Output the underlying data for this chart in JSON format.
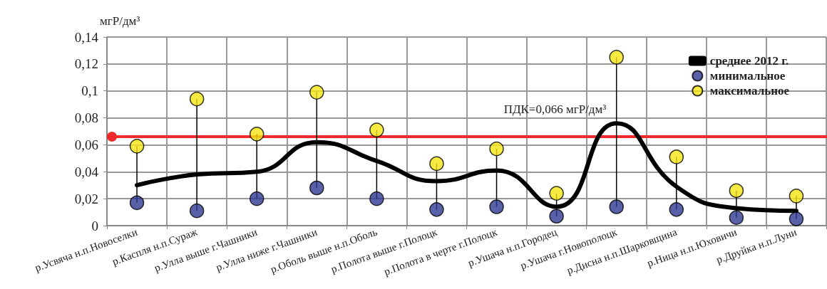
{
  "chart_data": {
    "type": "scatter",
    "ylabel": "мгР/дм³",
    "categories": [
      "р.Усвяча н.п.Новоселки",
      "р.Каспля н.п.Сураж",
      "р.Улла выше г.Чашники",
      "р.Улла ниже г.Чашники",
      "р.Оболь выше н.п.Оболь",
      "р.Полота выше г.Полоцк",
      "р.Полота в черте г.Полоцк",
      "р.Ушача н.п.Городец",
      "р.Ушача г.Новополоцк",
      "р.Дисна н.п.Шарковщина",
      "р.Ница н.п.Юховичи",
      "р.Друйка н.п.Луни"
    ],
    "series": [
      {
        "name": "среднее 2012 г.",
        "type": "line",
        "marker": "none",
        "color": "#000000",
        "values": [
          0.03,
          0.038,
          0.04,
          0.062,
          0.048,
          0.033,
          0.041,
          0.014,
          0.076,
          0.029,
          0.013,
          0.011
        ]
      },
      {
        "name": "минимальное",
        "color": "#2e3a92",
        "values": [
          0.017,
          0.011,
          0.02,
          0.028,
          0.02,
          0.012,
          0.014,
          0.007,
          0.014,
          0.012,
          0.006,
          0.005
        ]
      },
      {
        "name": "максимальное",
        "color": "#f5e614",
        "values": [
          0.059,
          0.094,
          0.068,
          0.099,
          0.071,
          0.046,
          0.057,
          0.024,
          0.125,
          0.051,
          0.026,
          0.022
        ]
      }
    ],
    "ylim": [
      0,
      0.14
    ],
    "yticks": [
      0,
      {
        "value": 0.02,
        "label": "0,02"
      },
      {
        "value": 0.04,
        "label": "0,04"
      },
      {
        "value": 0.06,
        "label": "0,06"
      },
      {
        "value": 0.08,
        "label": "0,08"
      },
      {
        "value": 0.1,
        "label": "0,1"
      },
      {
        "value": 0.12,
        "label": "0,12"
      },
      {
        "value": 0.14,
        "label": "0,14"
      }
    ],
    "ref_lines": [
      {
        "axis": "y",
        "value": 0.066,
        "label": "ПДК=0,066 мгР/дм³",
        "color": "#ee2a2a"
      }
    ],
    "grid": true,
    "legend": "top right",
    "marker": "circle",
    "line_style": "solid"
  }
}
